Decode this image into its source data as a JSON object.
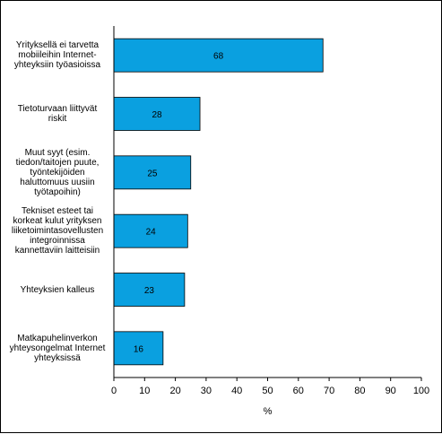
{
  "colors": {
    "bar": "#0aa0e0",
    "bar_stroke": "#000000",
    "axis": "#000000",
    "background": "#ffffff"
  },
  "chart_data": {
    "type": "bar",
    "orientation": "horizontal",
    "categories": [
      "Yrityksellä ei tarvetta\nmobiileihin Internet-\nyhteyksiin työasioissa",
      "Tietoturvaan liittyvät\nriskit",
      "Muut syyt (esim.\ntiedon/taitojen puute,\ntyöntekijöiden\nhaluttomuus uusiin\ntyötapoihin)",
      "Tekniset esteet tai\nkorkeat kulut yrityksen\nliiketoimintasovellusten\nintegroinnissa\nkannettaviin laitteisiin",
      "Yhteyksien kalleus",
      "Matkapuhelinverkon\nyhteysongelmat Internet\nyhteyksissä"
    ],
    "values": [
      68,
      28,
      25,
      24,
      23,
      16
    ],
    "xlabel": "%",
    "xlim": [
      0,
      100
    ],
    "xticks": [
      0,
      10,
      20,
      30,
      40,
      50,
      60,
      70,
      80,
      90,
      100
    ],
    "grid": false,
    "legend": "none"
  }
}
